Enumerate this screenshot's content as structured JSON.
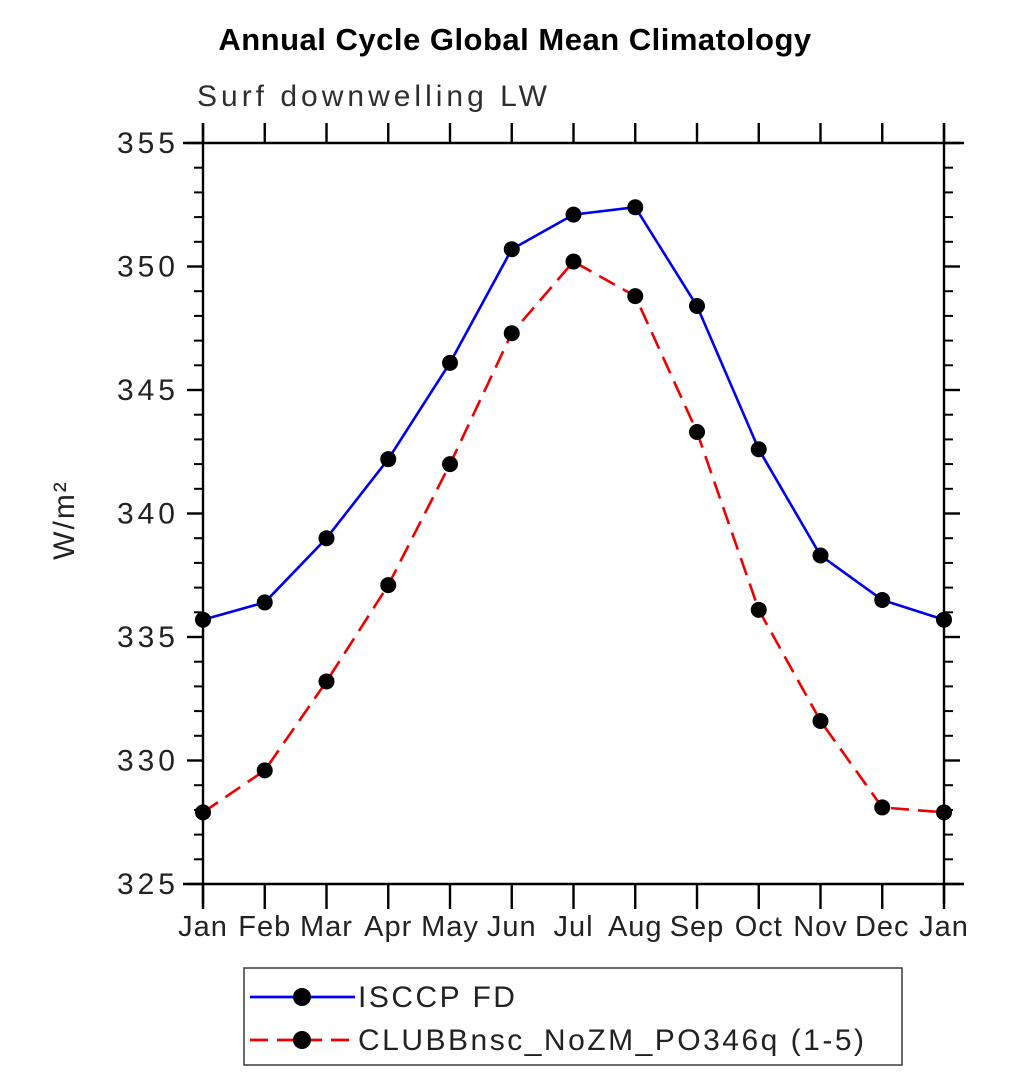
{
  "page": {
    "title": "Annual Cycle Global Mean Climatology",
    "subtitle": "Surf downwelling LW"
  },
  "colors": {
    "background": "#ffffff",
    "axis": "#000000",
    "tick_label": "#222222",
    "series_blue": "#0000ee",
    "series_red": "#ee0000",
    "marker": "#000000",
    "legend_border": "#3a3a3a"
  },
  "chart_data": {
    "type": "line",
    "title": "Annual Cycle Global Mean Climatology",
    "subtitle": "Surf downwelling LW",
    "xlabel": "",
    "ylabel": "W/m²",
    "x_tick_labels": [
      "Jan",
      "Feb",
      "Mar",
      "Apr",
      "May",
      "Jun",
      "Jul",
      "Aug",
      "Sep",
      "Oct",
      "Nov",
      "Dec",
      "Jan"
    ],
    "ylim": [
      325,
      355
    ],
    "y_major_ticks": [
      325,
      330,
      335,
      340,
      345,
      350,
      355
    ],
    "y_minor_step": 1,
    "grid": false,
    "legend_position": "bottom",
    "series": [
      {
        "name": "ISCCP FD",
        "color": "#0000ee",
        "line_style": "solid",
        "marker": "circle",
        "marker_color": "#000000",
        "values": [
          335.7,
          336.4,
          339.0,
          342.2,
          346.1,
          350.7,
          352.1,
          352.4,
          348.4,
          342.6,
          338.3,
          336.5,
          335.7
        ]
      },
      {
        "name": "CLUBBnsc_NoZM_PO346q (1-5)",
        "color": "#ee0000",
        "line_style": "dashed",
        "marker": "circle",
        "marker_color": "#000000",
        "values": [
          327.9,
          329.6,
          333.2,
          337.1,
          342.0,
          347.3,
          350.2,
          348.8,
          343.3,
          336.1,
          331.6,
          328.1,
          327.9
        ]
      }
    ]
  }
}
